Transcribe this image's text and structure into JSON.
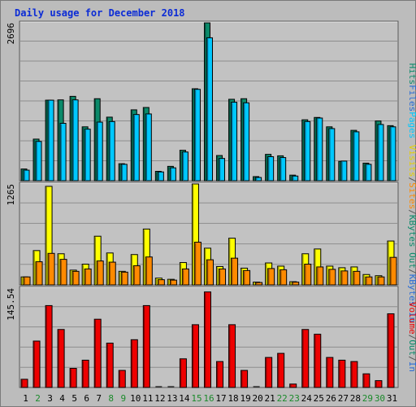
{
  "chart_data": {
    "type": "bar",
    "title": "Daily usage for December 2018",
    "categories": [
      "1",
      "2",
      "3",
      "4",
      "5",
      "6",
      "7",
      "8",
      "9",
      "10",
      "11",
      "12",
      "13",
      "14",
      "15",
      "16",
      "17",
      "18",
      "19",
      "20",
      "21",
      "22",
      "23",
      "24",
      "25",
      "26",
      "27",
      "28",
      "29",
      "30",
      "31"
    ],
    "weekend_days": [
      "2",
      "8",
      "9",
      "15",
      "16",
      "22",
      "23",
      "29",
      "30"
    ],
    "panels": [
      {
        "id": "hits_files_pages",
        "ymax_label": "2696",
        "ymax": 2696,
        "series": [
          {
            "name": "Hits",
            "color": "#0b8a6a",
            "values": [
              200,
              710,
              1375,
              1380,
              1440,
              920,
              1400,
              1085,
              290,
              1210,
              1250,
              160,
              245,
              520,
              1570,
              2695,
              430,
              1390,
              1400,
              70,
              450,
              425,
              95,
              1040,
              1080,
              920,
              330,
              860,
              300,
              1020,
              940
            ]
          },
          {
            "name": "Files",
            "color": "#00c8ff",
            "values": [
              180,
              670,
              1375,
              980,
              1380,
              880,
              1000,
              1010,
              280,
              1130,
              1140,
              150,
              220,
              490,
              1560,
              2440,
              380,
              1340,
              1330,
              55,
              410,
              395,
              80,
              1010,
              1070,
              890,
              335,
              835,
              280,
              960,
              920
            ]
          },
          {
            "name": "Pages",
            "color": "#00c8ff",
            "values": [
              0,
              0,
              0,
              0,
              0,
              0,
              0,
              0,
              0,
              0,
              0,
              0,
              0,
              0,
              0,
              0,
              0,
              0,
              0,
              0,
              0,
              0,
              0,
              0,
              0,
              0,
              0,
              0,
              0,
              0,
              0
            ]
          }
        ],
        "side_labels": [
          {
            "text": "Hits",
            "color": "#0b8a6a"
          },
          {
            "text": "Files",
            "color": "#2a6dd6"
          },
          {
            "text": "Pages",
            "color": "#00c8ff"
          }
        ]
      },
      {
        "id": "visits_sites_kbytes",
        "ymax_label": "1265",
        "ymax": 1265,
        "series": [
          {
            "name": "Visits",
            "color": "#ffff00",
            "values": [
              100,
              430,
              1235,
              390,
              185,
              260,
              610,
              400,
              170,
              380,
              700,
              85,
              70,
              280,
              1265,
              460,
              230,
              585,
              210,
              35,
              275,
              235,
              40,
              390,
              450,
              235,
              215,
              225,
              130,
              115,
              550
            ]
          },
          {
            "name": "Sites",
            "color": "#ff8a00",
            "values": [
              100,
              290,
              395,
              320,
              170,
              200,
              300,
              285,
              160,
              240,
              350,
              65,
              60,
              200,
              535,
              315,
              200,
              335,
              180,
              30,
              205,
              190,
              35,
              260,
              225,
              195,
              175,
              170,
              100,
              100,
              345
            ]
          }
        ],
        "side_labels": [
          {
            "text": "Visits",
            "color": "#e6d000"
          },
          {
            "text": "/",
            "color": "#555555"
          },
          {
            "text": "Sites",
            "color": "#ff8a00"
          },
          {
            "text": "/",
            "color": "#555555"
          },
          {
            "text": "KBytes Out",
            "color": "#0b8a6a"
          },
          {
            "text": "/",
            "color": "#555555"
          },
          {
            "text": "KBytes In",
            "color": "#2a6dd6"
          }
        ]
      },
      {
        "id": "volume",
        "ymax_label": "145.54",
        "ymax": 145.54,
        "series": [
          {
            "name": "Volume",
            "color": "#ee0000",
            "values": [
              12,
              68,
              120,
              85,
              28,
              40,
              100,
              65,
              25,
              70,
              120,
              0,
              0,
              42,
              92,
              140,
              38,
              92,
              25,
              0,
              44,
              50,
              5,
              85,
              78,
              44,
              40,
              38,
              20,
              10,
              108
            ]
          }
        ],
        "side_labels": [
          {
            "text": "Volume",
            "color": "#ee0000"
          },
          {
            "text": "/",
            "color": "#555555"
          },
          {
            "text": "Out",
            "color": "#0b8a6a"
          },
          {
            "text": "/",
            "color": "#555555"
          },
          {
            "text": "In",
            "color": "#2a6dd6"
          }
        ]
      }
    ],
    "colors": {
      "background": "#bcbcbc",
      "plot_background": "#c2c2c2",
      "gridline": "#8e8e8e",
      "title": "#0b2bd6",
      "weekday_tick": "#000000",
      "weekend_tick": "#1a8a2a"
    }
  }
}
